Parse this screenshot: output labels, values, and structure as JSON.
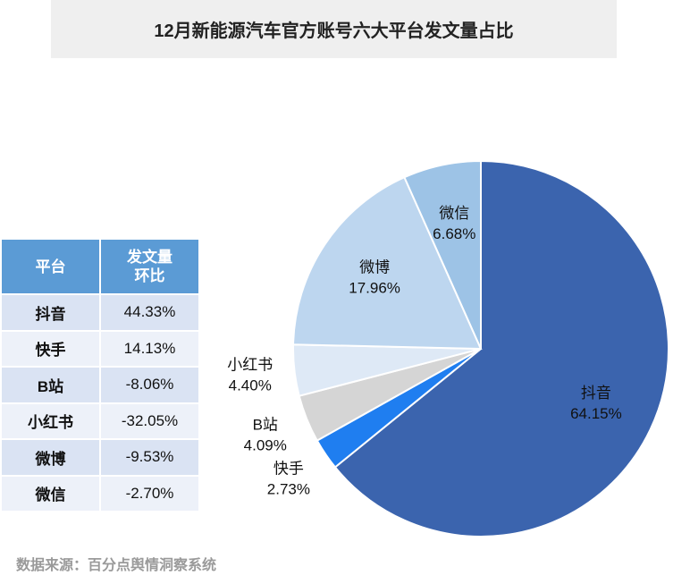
{
  "chart_data": {
    "type": "pie",
    "title": "12月新能源汽车官方账号六大平台发文量占比",
    "categories": [
      "抖音",
      "快手",
      "B站",
      "小红书",
      "微博",
      "微信"
    ],
    "values": [
      64.15,
      2.73,
      4.09,
      4.4,
      17.96,
      6.68
    ],
    "value_labels": [
      "64.15%",
      "2.73%",
      "4.09%",
      "4.40%",
      "17.96%",
      "6.68%"
    ],
    "colors": [
      "#3b64ae",
      "#1f7ef0",
      "#d5d5d5",
      "#dee9f6",
      "#bdd6ef",
      "#9dc3e6"
    ]
  },
  "table": {
    "header": [
      "平台",
      "发文量环比"
    ],
    "rows": [
      [
        "抖音",
        "44.33%"
      ],
      [
        "快手",
        "14.13%"
      ],
      [
        "B站",
        "-8.06%"
      ],
      [
        "小红书",
        "-32.05%"
      ],
      [
        "微博",
        "-9.53%"
      ],
      [
        "微信",
        "-2.70%"
      ]
    ]
  },
  "source": "数据来源：百分点舆情洞察系统"
}
